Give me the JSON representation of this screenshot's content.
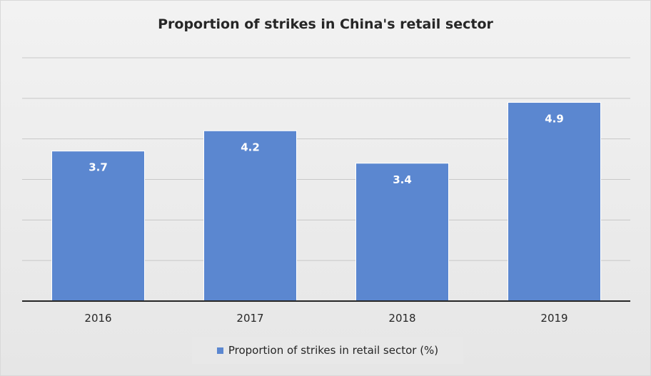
{
  "chart_data": {
    "type": "bar",
    "title": "Proportion of strikes in China's retail sector",
    "categories": [
      "2016",
      "2017",
      "2018",
      "2019"
    ],
    "series": [
      {
        "name": "Proportion of strikes in retail sector (%)",
        "values": [
          3.7,
          4.2,
          3.4,
          4.9
        ]
      }
    ],
    "data_labels": [
      "3.7",
      "4.2",
      "3.4",
      "4.9"
    ],
    "ylim": [
      0,
      6
    ],
    "xlabel": "",
    "ylabel": "",
    "y_tick_labels_shown": false,
    "grid": true,
    "legend_position": "bottom",
    "colors": {
      "bar": "#5b87d0",
      "bar_border": "#ffffff",
      "grid": "#c8c8c8",
      "axis": "#262626",
      "data_label": "#ffffff"
    }
  }
}
